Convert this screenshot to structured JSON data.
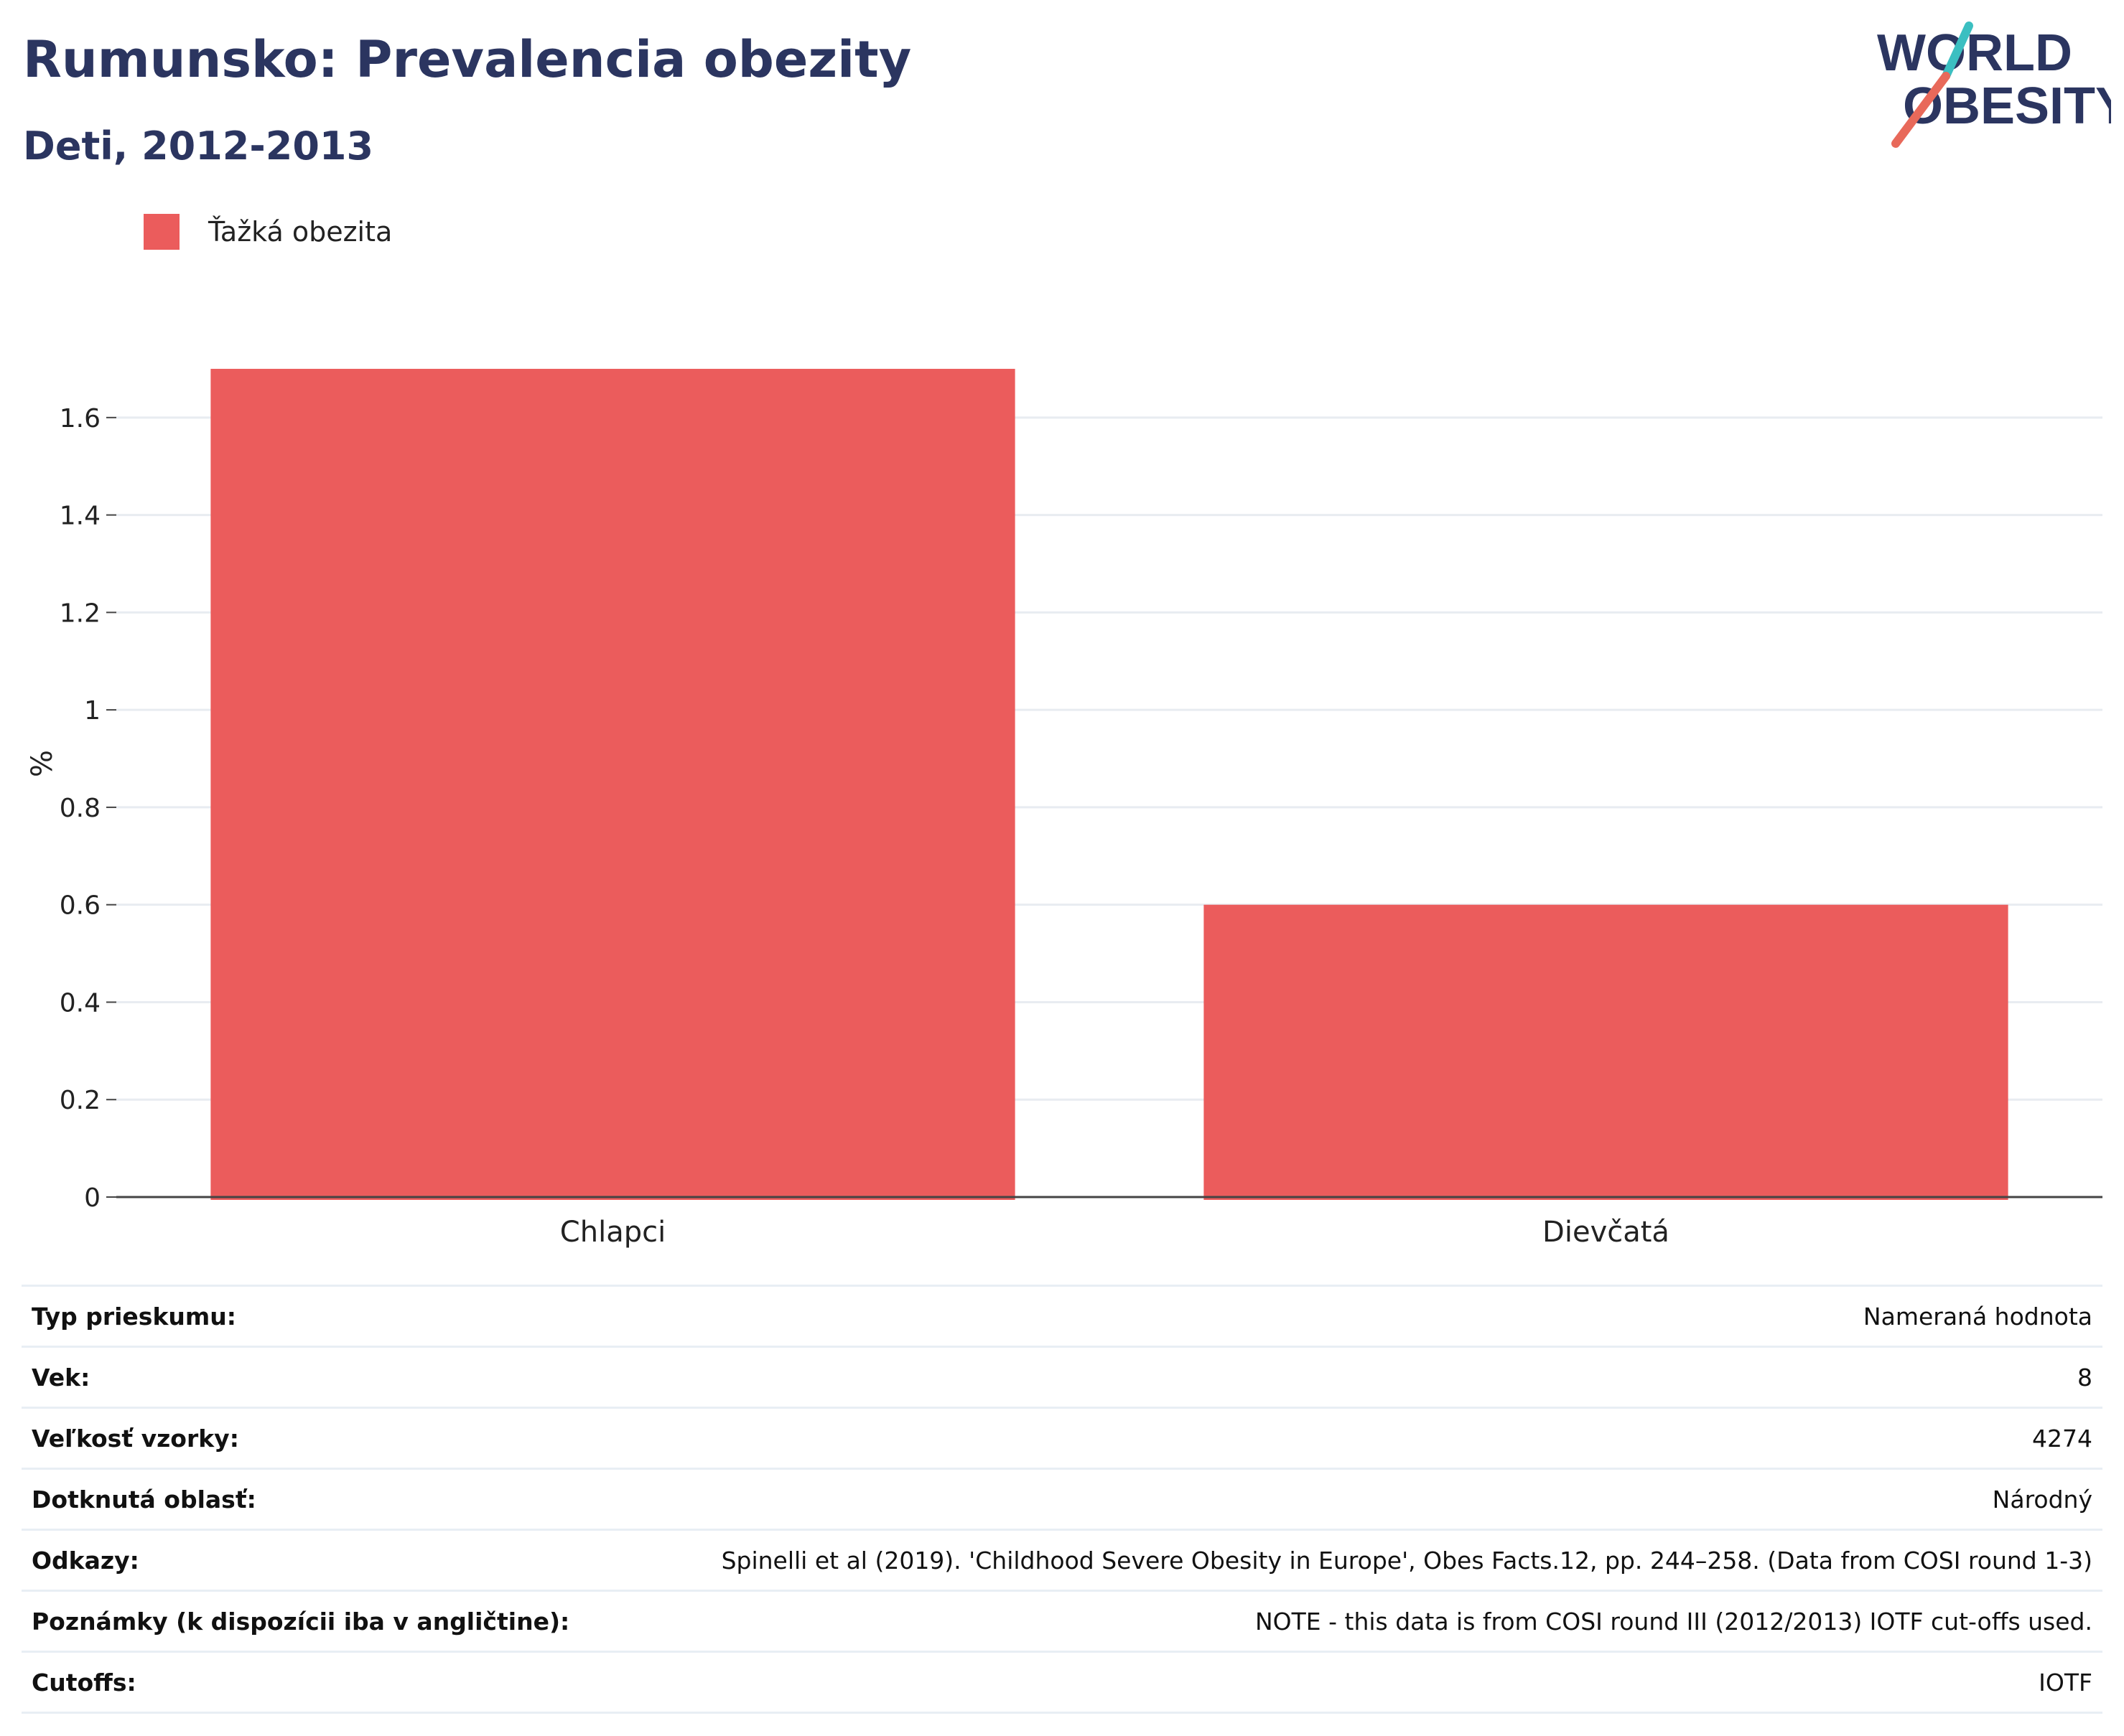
{
  "header": {
    "title": "Rumunsko: Prevalencia obezity",
    "subtitle": "Deti, 2012-2013",
    "logo_line1": "WORLD",
    "logo_line2": "OBESITY"
  },
  "legend": {
    "label": "Ťažká obezita"
  },
  "chart_data": {
    "type": "bar",
    "title": "Rumunsko: Prevalencia obezity",
    "subtitle": "Deti, 2012-2013",
    "categories": [
      "Chlapci",
      "Dievčatá"
    ],
    "series": [
      {
        "name": "Ťažká obezita",
        "values": [
          1.7,
          0.6
        ],
        "color": "#eb5c5c"
      }
    ],
    "ylabel": "%",
    "xlabel": "",
    "ylim": [
      0,
      1.75
    ],
    "yticks": [
      0,
      0.2,
      0.4,
      0.6,
      0.8,
      1,
      1.2,
      1.4,
      1.6
    ],
    "ytick_labels": [
      "0",
      "0.2",
      "0.4",
      "0.6",
      "0.8",
      "1",
      "1.2",
      "1.4",
      "1.6"
    ],
    "grid": true,
    "legend_position": "top-left"
  },
  "info": [
    {
      "key": "Typ prieskumu:",
      "value": "Nameraná hodnota"
    },
    {
      "key": "Vek:",
      "value": "8"
    },
    {
      "key": "Veľkosť vzorky:",
      "value": "4274"
    },
    {
      "key": "Dotknutá oblasť:",
      "value": "Národný"
    },
    {
      "key": "Odkazy:",
      "value": "Spinelli et al (2019). 'Childhood Severe Obesity in Europe', Obes Facts.12, pp. 244–258. (Data from COSI round 1-3)"
    },
    {
      "key": "Poznámky (k dispozícii iba v angličtine):",
      "value": "NOTE - this data is from COSI round III (2012/2013) IOTF cut-offs used."
    },
    {
      "key": "Cutoffs:",
      "value": "IOTF"
    }
  ],
  "colors": {
    "title": "#2b3560",
    "bar": "#eb5c5c",
    "logo_teal": "#3bbfc1",
    "logo_coral": "#e8695a"
  }
}
